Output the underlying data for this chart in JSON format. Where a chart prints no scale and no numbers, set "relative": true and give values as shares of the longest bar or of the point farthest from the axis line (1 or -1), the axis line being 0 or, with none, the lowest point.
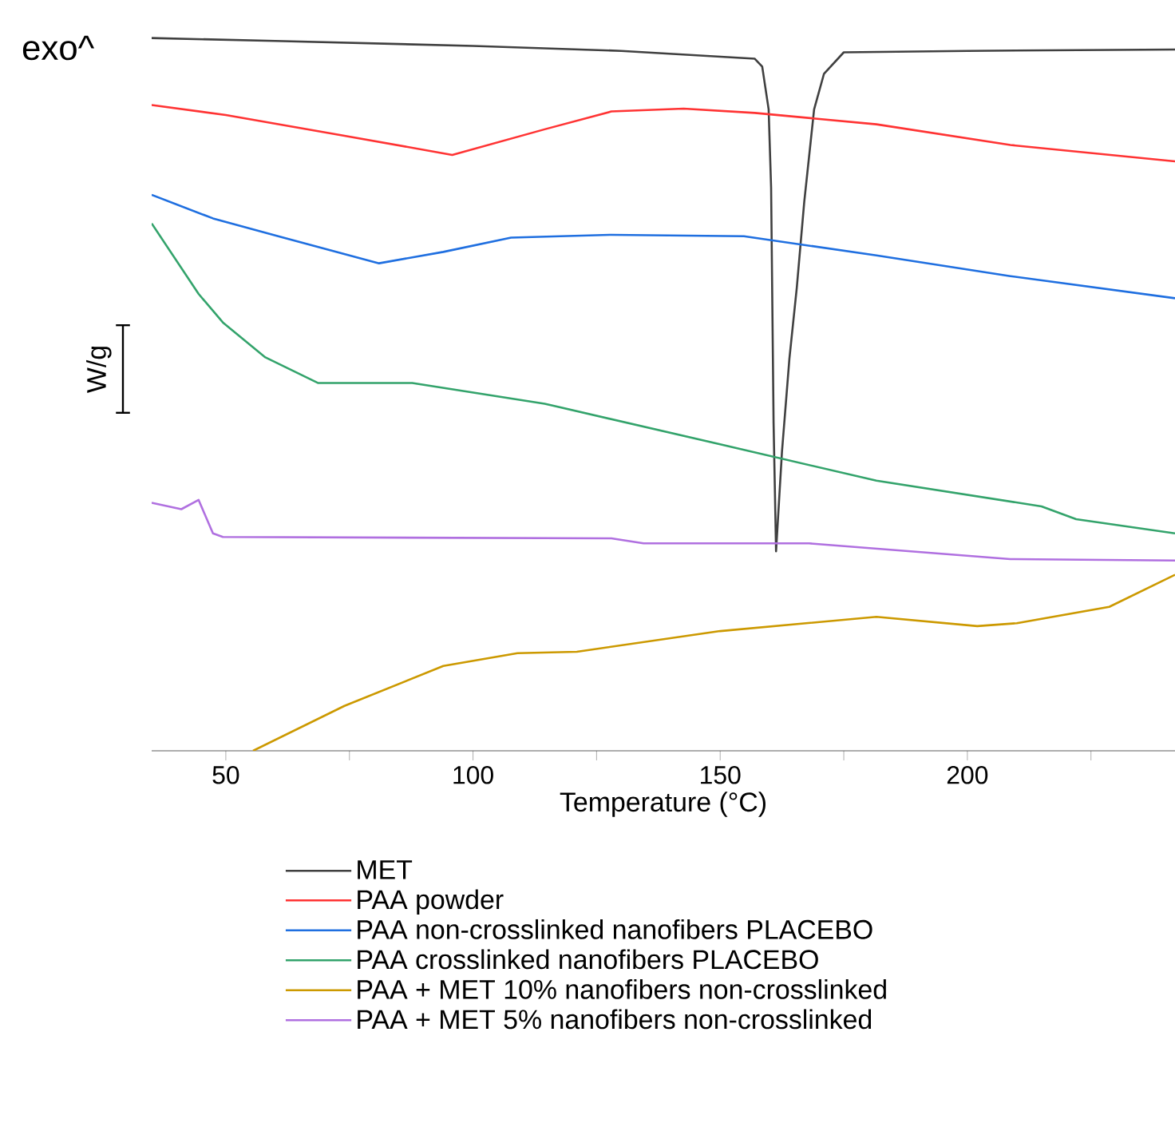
{
  "chart_data": {
    "type": "line",
    "relative": true,
    "xlabel": "Temperature (°C)",
    "ylabel": "W/g",
    "annotations": [
      "exo^"
    ],
    "xlim": [
      35,
      242
    ],
    "xticks": [
      50,
      {
        "value": 75,
        "label": null
      },
      100,
      {
        "value": 125,
        "label": null
      },
      150,
      {
        "value": 175,
        "label": null
      },
      200,
      {
        "value": 225,
        "label": null
      }
    ],
    "legend": "bottom",
    "marker": "none",
    "series": [
      {
        "name": "MET",
        "color": "#404040",
        "x": [
          35,
          60,
          100,
          130,
          157,
          158.5,
          159.8,
          160.3,
          160.8,
          161.3,
          162.5,
          164,
          165.5,
          167,
          169,
          171,
          175,
          200,
          242
        ],
        "values": [
          1.0,
          0.996,
          0.989,
          0.982,
          0.971,
          0.96,
          0.9,
          0.79,
          0.46,
          0.28,
          0.42,
          0.55,
          0.65,
          0.77,
          0.9,
          0.95,
          0.98,
          0.982,
          0.984
        ]
      },
      {
        "name": "PAA powder",
        "color": "#ff3333",
        "x": [
          35,
          50,
          74,
          95.8,
          114.5,
          128,
          142.6,
          157,
          181.6,
          208.7,
          242
        ],
        "values": [
          0.906,
          0.892,
          0.863,
          0.836,
          0.872,
          0.897,
          0.901,
          0.895,
          0.879,
          0.85,
          0.827
        ]
      },
      {
        "name": "PAA non-crosslinked nanofibers PLACEBO",
        "color": "#1f6fe0",
        "x": [
          35,
          47.4,
          60.6,
          81,
          94,
          107.7,
          128,
          154.8,
          181.6,
          208.7,
          242
        ],
        "values": [
          0.78,
          0.747,
          0.722,
          0.684,
          0.7,
          0.72,
          0.724,
          0.722,
          0.695,
          0.666,
          0.635
        ]
      },
      {
        "name": "PAA crosslinked nanofibers PLACEBO",
        "color": "#33a36b",
        "x": [
          35,
          44.5,
          49.4,
          58,
          68.7,
          87.7,
          114.5,
          150,
          181.6,
          215,
          222,
          242
        ],
        "values": [
          0.74,
          0.641,
          0.601,
          0.552,
          0.516,
          0.516,
          0.487,
          0.43,
          0.379,
          0.343,
          0.325,
          0.305
        ]
      },
      {
        "name": "PAA + MET 10% nanofibers non-crosslinked",
        "color": "#cc9900",
        "x": [
          55.5,
          74,
          94,
          109,
          121,
          150,
          181.6,
          202,
          210,
          228.7,
          242
        ],
        "values": [
          0,
          0.063,
          0.119,
          0.137,
          0.139,
          0.168,
          0.188,
          0.175,
          0.179,
          0.202,
          0.247
        ]
      },
      {
        "name": "PAA + MET 5% nanofibers non-crosslinked",
        "color": "#b070e0",
        "x": [
          35,
          41,
          44.5,
          47.4,
          49.4,
          128,
          134.5,
          168,
          208.7,
          242
        ],
        "values": [
          0.348,
          0.339,
          0.352,
          0.305,
          0.3,
          0.298,
          0.291,
          0.291,
          0.269,
          0.267
        ]
      }
    ]
  }
}
